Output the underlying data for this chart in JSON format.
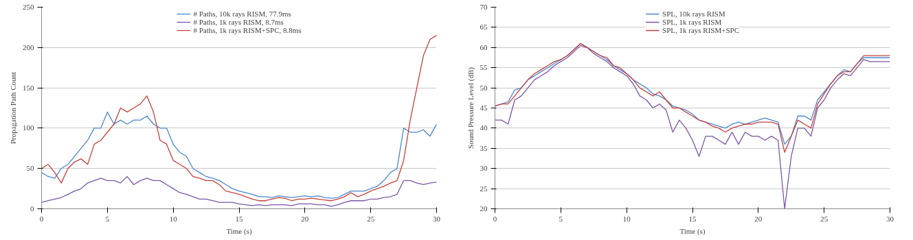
{
  "chart_data": [
    {
      "type": "line",
      "xlabel": "Time (s)",
      "ylabel": "Propagation Path Count",
      "xlim": [
        0,
        30
      ],
      "xticks": [
        0,
        5,
        10,
        15,
        20,
        25,
        30
      ],
      "ylim": [
        0,
        250
      ],
      "yticks": [
        0,
        50,
        100,
        150,
        200,
        250
      ],
      "grid": "y",
      "legend": "top",
      "marker": "none",
      "line_style": "solid",
      "x": [
        0,
        0.5,
        1,
        1.5,
        2,
        2.5,
        3,
        3.5,
        4,
        4.5,
        5,
        5.5,
        6,
        6.5,
        7,
        7.5,
        8,
        8.5,
        9,
        9.5,
        10,
        10.5,
        11,
        11.5,
        12,
        12.5,
        13,
        13.5,
        14,
        14.5,
        15,
        15.5,
        16,
        16.5,
        17,
        17.5,
        18,
        18.5,
        19,
        19.5,
        20,
        20.5,
        21,
        21.5,
        22,
        22.5,
        23,
        23.5,
        24,
        24.5,
        25,
        25.5,
        26,
        26.5,
        27,
        27.5,
        28,
        28.5,
        29,
        29.5,
        30
      ],
      "series": [
        {
          "name": "# Paths, 10k rays RISM, 77.9ms",
          "color": "#4a86d0",
          "values": [
            45,
            40,
            38,
            50,
            55,
            65,
            75,
            85,
            100,
            100,
            120,
            105,
            110,
            105,
            110,
            110,
            115,
            105,
            100,
            100,
            80,
            70,
            65,
            50,
            45,
            40,
            38,
            35,
            30,
            25,
            22,
            20,
            18,
            15,
            15,
            14,
            16,
            15,
            14,
            15,
            16,
            15,
            16,
            14,
            13,
            14,
            18,
            22,
            22,
            22,
            25,
            28,
            35,
            45,
            50,
            100,
            95,
            95,
            98,
            90,
            105
          ]
        },
        {
          "name": "# Paths, 1k rays RISM, 8.7ms",
          "color": "#7b55a8",
          "values": [
            8,
            10,
            12,
            14,
            18,
            22,
            25,
            32,
            35,
            38,
            35,
            35,
            32,
            40,
            30,
            35,
            38,
            35,
            35,
            30,
            25,
            20,
            18,
            15,
            12,
            12,
            10,
            8,
            8,
            8,
            6,
            5,
            4,
            5,
            4,
            5,
            5,
            5,
            4,
            6,
            6,
            6,
            5,
            5,
            3,
            5,
            8,
            10,
            10,
            10,
            12,
            12,
            14,
            15,
            18,
            35,
            35,
            32,
            30,
            32,
            33
          ]
        },
        {
          "name": "# Paths, 1k rays RISM+SPC, 8.8ms",
          "color": "#c4413c",
          "values": [
            50,
            55,
            45,
            32,
            50,
            58,
            62,
            55,
            80,
            85,
            95,
            105,
            125,
            120,
            125,
            130,
            140,
            120,
            85,
            80,
            60,
            55,
            50,
            40,
            38,
            35,
            35,
            30,
            22,
            20,
            18,
            15,
            12,
            10,
            10,
            12,
            14,
            13,
            10,
            12,
            12,
            13,
            12,
            11,
            10,
            12,
            15,
            20,
            15,
            18,
            22,
            25,
            28,
            32,
            35,
            60,
            110,
            150,
            190,
            210,
            215
          ]
        }
      ]
    },
    {
      "type": "line",
      "xlabel": "Time (s)",
      "ylabel": "Sound Pressure Level (dB)",
      "xlim": [
        0,
        30
      ],
      "xticks": [
        0,
        5,
        10,
        15,
        20,
        25,
        30
      ],
      "ylim": [
        20,
        70
      ],
      "yticks": [
        20,
        25,
        30,
        35,
        40,
        45,
        50,
        55,
        60,
        65,
        70
      ],
      "grid": "y",
      "legend": "top",
      "marker": "none",
      "line_style": "solid",
      "x": [
        0,
        0.5,
        1,
        1.5,
        2,
        2.5,
        3,
        3.5,
        4,
        4.5,
        5,
        5.5,
        6,
        6.5,
        7,
        7.5,
        8,
        8.5,
        9,
        9.5,
        10,
        10.5,
        11,
        11.5,
        12,
        12.5,
        13,
        13.5,
        14,
        14.5,
        15,
        15.5,
        16,
        16.5,
        17,
        17.5,
        18,
        18.5,
        19,
        19.5,
        20,
        20.5,
        21,
        21.5,
        22,
        22.5,
        23,
        23.5,
        24,
        24.5,
        25,
        25.5,
        26,
        26.5,
        27,
        27.5,
        28,
        28.5,
        29,
        29.5,
        30
      ],
      "series": [
        {
          "name": "SPL, 10k rays RISM",
          "color": "#4a86d0",
          "values": [
            45.5,
            46,
            46.5,
            49.5,
            50,
            52,
            53,
            54,
            55,
            56,
            57,
            58,
            59.5,
            61,
            60,
            59,
            58,
            57,
            55.5,
            54.5,
            53.5,
            52,
            51,
            50,
            48.5,
            48,
            47,
            45.5,
            45,
            44.5,
            43.5,
            42,
            41.5,
            41,
            40.5,
            40,
            41,
            41.5,
            41,
            41.5,
            42,
            42.5,
            42,
            41.5,
            36,
            38,
            43,
            43,
            42,
            47,
            49,
            51,
            53,
            54.5,
            54,
            56,
            57.5,
            57.5,
            57.5,
            57.5,
            57.5
          ]
        },
        {
          "name": "SPL, 1k rays RISM",
          "color": "#7b55a8",
          "values": [
            42,
            42,
            41,
            47,
            48,
            50,
            52,
            53,
            54,
            55.5,
            56.5,
            57.5,
            59,
            60.5,
            60,
            58.5,
            57.5,
            56.5,
            55,
            54,
            53,
            51,
            48,
            47,
            45,
            46,
            44.5,
            39,
            42,
            40,
            37,
            33,
            38,
            38,
            37,
            36,
            39,
            36,
            39,
            38,
            38,
            37,
            38,
            37,
            20,
            33,
            40,
            40,
            38,
            45,
            47,
            50,
            52,
            53.5,
            53,
            55,
            57,
            56.5,
            56.5,
            56.5,
            56.5
          ]
        },
        {
          "name": "SPL, 1k rays RISM+SPC",
          "color": "#c4413c",
          "values": [
            45.5,
            46,
            46,
            48,
            50,
            52,
            53.5,
            54.5,
            55.5,
            56.5,
            57,
            58,
            59.5,
            61,
            60,
            59,
            58,
            57.5,
            55.5,
            55,
            53.5,
            52,
            50,
            49,
            48,
            49,
            47,
            45,
            45,
            44,
            43,
            42,
            41.5,
            40.5,
            40,
            39,
            40,
            40.5,
            41,
            41,
            41.5,
            41.5,
            41.5,
            41,
            34,
            38,
            42,
            41,
            40,
            46,
            48.5,
            51,
            53,
            54,
            54,
            56,
            58,
            58,
            58,
            58,
            58
          ]
        }
      ]
    }
  ]
}
